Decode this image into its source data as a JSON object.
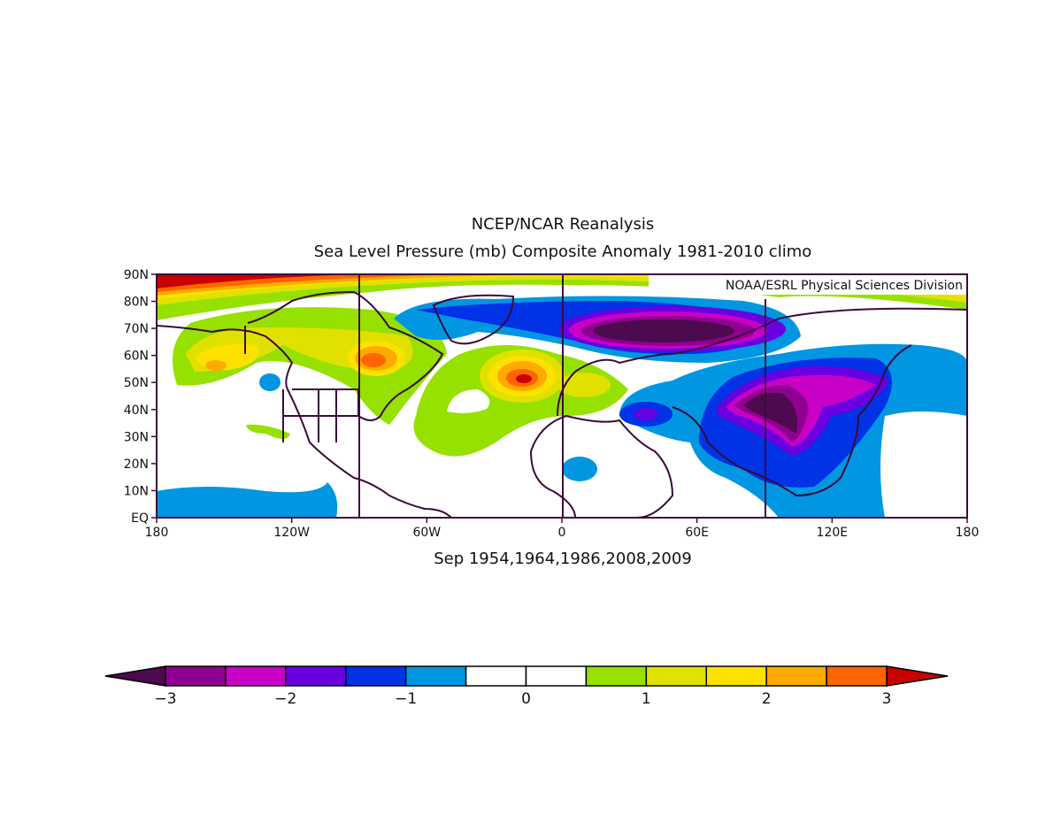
{
  "title": "NCEP/NCAR Reanalysis",
  "subtitle": "Sea Level Pressure (mb) Composite Anomaly 1981-2010 climo",
  "credit": "NOAA/ESRL Physical Sciences Division",
  "caption": "Sep 1954,1964,1986,2008,2009",
  "lat_labels": [
    "90N",
    "80N",
    "70N",
    "60N",
    "50N",
    "40N",
    "30N",
    "20N",
    "10N",
    "EQ"
  ],
  "lon_labels": [
    "180",
    "120W",
    "60W",
    "0",
    "60E",
    "120E",
    "180"
  ],
  "colorbar": {
    "tick_labels": [
      "-3",
      "-2",
      "-1",
      "0",
      "1",
      "2",
      "3"
    ],
    "under_color": "#4e0a4e",
    "over_color": "#c80000",
    "colors": [
      "#900090",
      "#c800c8",
      "#6a00e0",
      "#0032e6",
      "#0096e1",
      "#ffffff",
      "#ffffff",
      "#96e100",
      "#e1e100",
      "#ffe100",
      "#ffaa00",
      "#ff6400"
    ]
  },
  "coast_color": "#3c0a3c"
}
